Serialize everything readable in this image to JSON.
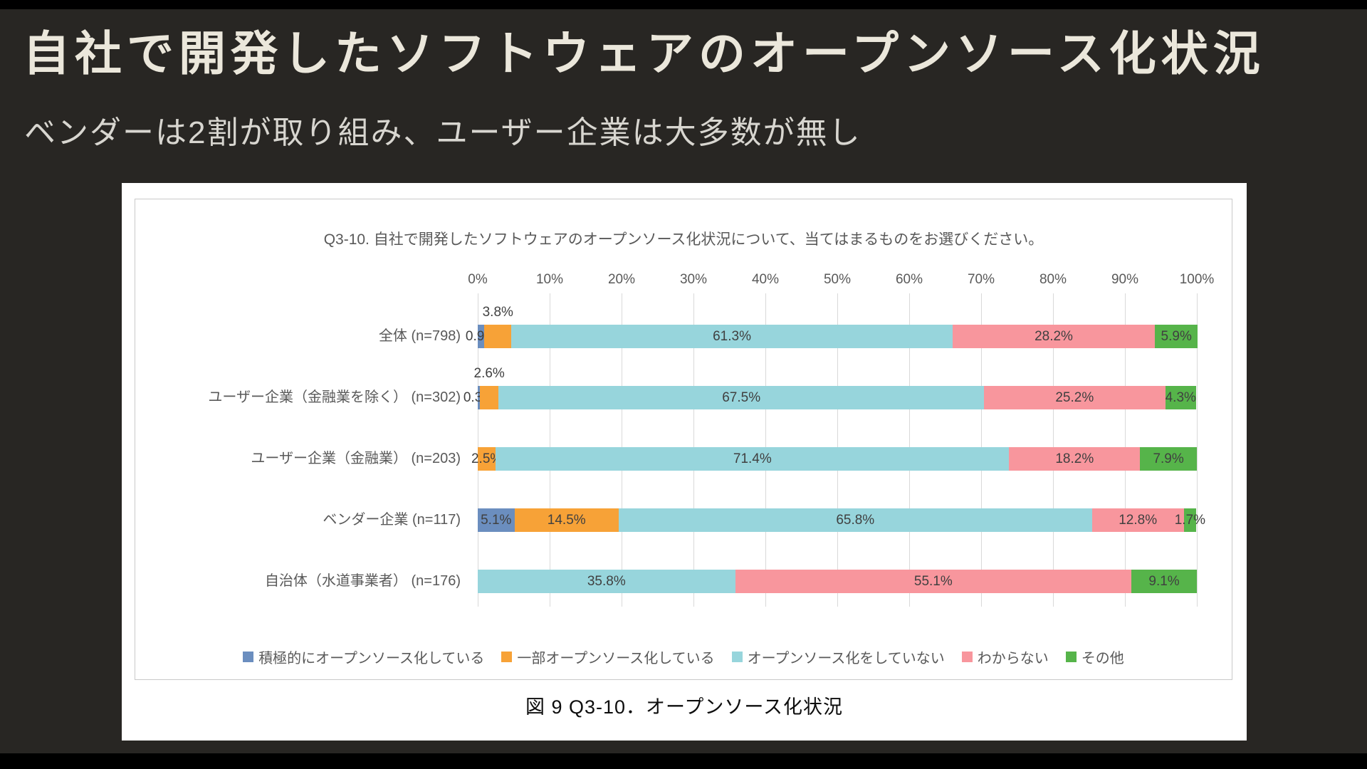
{
  "slide": {
    "title": "自社で開発したソフトウェアのオープンソース化状況",
    "subtitle": "ベンダーは2割が取り組み、ユーザー企業は大多数が無し"
  },
  "figure": {
    "caption": "図 9 Q3-10．オープンソース化状況"
  },
  "chart_data": {
    "type": "bar",
    "stacked": true,
    "orientation": "horizontal",
    "title": "Q3-10. 自社で開発したソフトウェアのオープンソース化状況について、当てはまるものをお選びください。",
    "xlim": [
      0,
      100
    ],
    "x_ticks": [
      "0%",
      "10%",
      "20%",
      "30%",
      "40%",
      "50%",
      "60%",
      "70%",
      "80%",
      "90%",
      "100%"
    ],
    "grid": true,
    "legend_position": "bottom",
    "series": [
      {
        "name": "積極的にオープンソース化している",
        "color": "#6b8ebf"
      },
      {
        "name": "一部オープンソース化している",
        "color": "#f7a237"
      },
      {
        "name": "オープンソース化をしていない",
        "color": "#97d5dc"
      },
      {
        "name": "わからない",
        "color": "#f8969d"
      },
      {
        "name": "その他",
        "color": "#56b44a"
      }
    ],
    "rows": [
      {
        "label": "全体",
        "n": "(n=798)",
        "values": [
          0.9,
          3.8,
          61.3,
          28.2,
          5.9
        ],
        "label_pos": [
          "in",
          "above",
          "in",
          "in",
          "in"
        ]
      },
      {
        "label": "ユーザー企業（金融業を除く）",
        "n": "(n=302)",
        "values": [
          0.3,
          2.6,
          67.5,
          25.2,
          4.3
        ],
        "label_pos": [
          "in",
          "above",
          "in",
          "in",
          "in"
        ]
      },
      {
        "label": "ユーザー企業（金融業）",
        "n": "(n=203)",
        "values": [
          0,
          2.5,
          71.4,
          18.2,
          7.9
        ],
        "label_pos": [
          null,
          "in",
          "in",
          "in",
          "in"
        ]
      },
      {
        "label": "ベンダー企業",
        "n": "(n=117)",
        "values": [
          5.1,
          14.5,
          65.8,
          12.8,
          1.7
        ],
        "label_pos": [
          "in",
          "in",
          "in",
          "in",
          "in"
        ]
      },
      {
        "label": "自治体（水道事業者）",
        "n": "(n=176)",
        "values": [
          0,
          0,
          35.8,
          55.1,
          9.1
        ],
        "label_pos": [
          null,
          null,
          "in",
          "in",
          "in"
        ]
      }
    ]
  }
}
